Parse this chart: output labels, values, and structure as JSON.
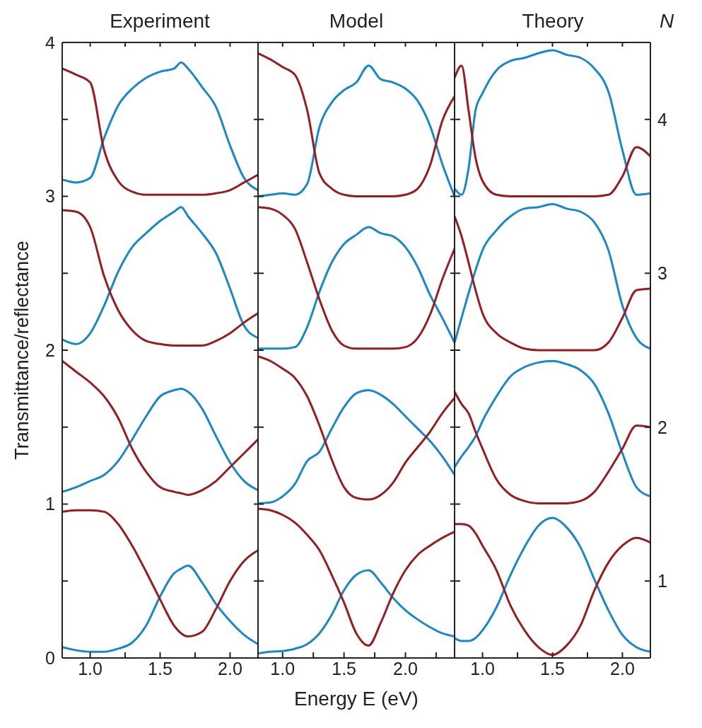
{
  "chart_data": [
    {
      "type": "line",
      "title": "Experiment",
      "ylabel": "Transmittance/reflectance",
      "xlim": [
        0.8,
        2.2
      ],
      "ylim": [
        0,
        4
      ],
      "xticks": [
        {
          "value": 1,
          "label": "1.0"
        },
        {
          "value": 1.25,
          "label": null
        },
        {
          "value": 1.5,
          "label": "1.5"
        },
        {
          "value": 1.75,
          "label": null
        },
        {
          "value": 2,
          "label": "2.0"
        }
      ],
      "yticks": [
        0,
        {
          "value": 0.5,
          "label": null
        },
        1,
        {
          "value": 1.5,
          "label": null
        },
        2,
        {
          "value": 2.5,
          "label": null
        },
        3,
        {
          "value": 3.5,
          "label": null
        },
        4
      ],
      "x": [
        0.8,
        0.9,
        1.0,
        1.1,
        1.2,
        1.3,
        1.4,
        1.5,
        1.6,
        1.65,
        1.7,
        1.8,
        1.9,
        2.0,
        2.1,
        2.2
      ],
      "series": [
        {
          "color": "#1888cc",
          "values": [
            0.07,
            0.05,
            0.04,
            0.04,
            0.06,
            0.1,
            0.21,
            0.4,
            0.55,
            0.58,
            0.6,
            0.49,
            0.35,
            0.24,
            0.15,
            0.09
          ]
        },
        {
          "color": "#9a1c20",
          "values": [
            0.95,
            0.96,
            0.96,
            0.95,
            0.87,
            0.73,
            0.56,
            0.38,
            0.21,
            0.16,
            0.14,
            0.17,
            0.32,
            0.5,
            0.63,
            0.7
          ]
        },
        {
          "color": "#1888cc",
          "values": [
            1.08,
            1.11,
            1.15,
            1.19,
            1.28,
            1.42,
            1.57,
            1.7,
            1.74,
            1.75,
            1.73,
            1.62,
            1.44,
            1.27,
            1.15,
            1.09
          ]
        },
        {
          "color": "#9a1c20",
          "values": [
            1.93,
            1.86,
            1.79,
            1.7,
            1.56,
            1.36,
            1.21,
            1.11,
            1.08,
            1.07,
            1.06,
            1.09,
            1.15,
            1.24,
            1.33,
            1.42
          ]
        },
        {
          "color": "#1888cc",
          "values": [
            2.07,
            2.04,
            2.11,
            2.29,
            2.51,
            2.67,
            2.76,
            2.84,
            2.9,
            2.93,
            2.87,
            2.76,
            2.63,
            2.4,
            2.16,
            2.08
          ]
        },
        {
          "color": "#9a1c20",
          "values": [
            2.91,
            2.9,
            2.8,
            2.48,
            2.26,
            2.13,
            2.06,
            2.04,
            2.03,
            2.03,
            2.03,
            2.03,
            2.06,
            2.11,
            2.18,
            2.24
          ]
        },
        {
          "color": "#1888cc",
          "values": [
            3.11,
            3.09,
            3.12,
            3.38,
            3.59,
            3.7,
            3.77,
            3.81,
            3.83,
            3.87,
            3.83,
            3.71,
            3.58,
            3.33,
            3.12,
            3.04
          ]
        },
        {
          "color": "#9a1c20",
          "values": [
            3.83,
            3.79,
            3.74,
            3.3,
            3.1,
            3.03,
            3.01,
            3.01,
            3.01,
            3.01,
            3.01,
            3.01,
            3.02,
            3.04,
            3.09,
            3.14
          ]
        }
      ]
    },
    {
      "type": "line",
      "title": "Model",
      "xlabel": "Energy E (eV)",
      "tick_labels": "x",
      "xlim": [
        0.8,
        2.4
      ],
      "ylim": [
        0,
        4
      ],
      "xticks": [
        {
          "value": 1,
          "label": "1.0"
        },
        {
          "value": 1.25,
          "label": null
        },
        {
          "value": 1.5,
          "label": "1.5"
        },
        {
          "value": 1.75,
          "label": null
        },
        {
          "value": 2,
          "label": "2.0"
        },
        {
          "value": 2.25,
          "label": null
        }
      ],
      "yticks": [
        0,
        {
          "value": 0.5,
          "label": null
        },
        1,
        {
          "value": 1.5,
          "label": null
        },
        2,
        {
          "value": 2.5,
          "label": null
        },
        3,
        {
          "value": 3.5,
          "label": null
        },
        4
      ],
      "x": [
        0.8,
        0.9,
        1.0,
        1.1,
        1.2,
        1.3,
        1.4,
        1.5,
        1.6,
        1.7,
        1.8,
        1.9,
        2.0,
        2.1,
        2.2,
        2.3,
        2.4
      ],
      "series": [
        {
          "color": "#1888cc",
          "values": [
            0.03,
            0.04,
            0.045,
            0.06,
            0.09,
            0.16,
            0.28,
            0.44,
            0.54,
            0.57,
            0.49,
            0.39,
            0.31,
            0.25,
            0.2,
            0.16,
            0.14
          ]
        },
        {
          "color": "#9a1c20",
          "values": [
            0.97,
            0.96,
            0.93,
            0.88,
            0.8,
            0.7,
            0.54,
            0.36,
            0.16,
            0.08,
            0.23,
            0.42,
            0.57,
            0.67,
            0.73,
            0.78,
            0.82
          ]
        },
        {
          "color": "#1888cc",
          "values": [
            1.005,
            1.01,
            1.05,
            1.13,
            1.28,
            1.34,
            1.49,
            1.63,
            1.72,
            1.74,
            1.71,
            1.65,
            1.57,
            1.49,
            1.41,
            1.31,
            1.19
          ]
        },
        {
          "color": "#9a1c20",
          "values": [
            1.96,
            1.93,
            1.88,
            1.82,
            1.7,
            1.51,
            1.29,
            1.11,
            1.04,
            1.03,
            1.06,
            1.14,
            1.27,
            1.37,
            1.47,
            1.59,
            1.69
          ]
        },
        {
          "color": "#1888cc",
          "values": [
            2.01,
            2.01,
            2.01,
            2.02,
            2.15,
            2.38,
            2.57,
            2.69,
            2.75,
            2.8,
            2.76,
            2.74,
            2.67,
            2.54,
            2.36,
            2.21,
            2.05
          ]
        },
        {
          "color": "#9a1c20",
          "values": [
            2.93,
            2.92,
            2.88,
            2.79,
            2.57,
            2.33,
            2.13,
            2.03,
            2.01,
            2.01,
            2.01,
            2.01,
            2.02,
            2.08,
            2.23,
            2.46,
            2.66
          ]
        },
        {
          "color": "#1888cc",
          "values": [
            3.0,
            3.01,
            3.02,
            3.01,
            3.08,
            3.45,
            3.61,
            3.69,
            3.74,
            3.85,
            3.76,
            3.74,
            3.7,
            3.62,
            3.46,
            3.21,
            3.0
          ]
        },
        {
          "color": "#9a1c20",
          "values": [
            3.93,
            3.89,
            3.84,
            3.79,
            3.56,
            3.15,
            3.05,
            3.01,
            3.0,
            3.0,
            3.0,
            3.0,
            3.01,
            3.05,
            3.2,
            3.49,
            3.65
          ]
        }
      ]
    },
    {
      "type": "line",
      "title": "Theory",
      "y2label": "N",
      "tick_labels": "x",
      "xlim": [
        0.8,
        2.2
      ],
      "ylim": [
        0,
        4
      ],
      "y2lim": [
        0,
        4
      ],
      "xticks": [
        {
          "value": 1,
          "label": "1.0"
        },
        {
          "value": 1.25,
          "label": null
        },
        {
          "value": 1.5,
          "label": "1.5"
        },
        {
          "value": 1.75,
          "label": null
        },
        {
          "value": 2,
          "label": "2.0"
        }
      ],
      "yticks": [
        0,
        {
          "value": 0.5,
          "label": null
        },
        1,
        {
          "value": 1.5,
          "label": null
        },
        2,
        {
          "value": 2.5,
          "label": null
        },
        3,
        {
          "value": 3.5,
          "label": null
        },
        4
      ],
      "y2ticks": [
        {
          "value": 0.5,
          "label": "1"
        },
        {
          "value": 1.5,
          "label": "2"
        },
        {
          "value": 2.5,
          "label": "3"
        },
        {
          "value": 3.5,
          "label": "4"
        }
      ],
      "x": [
        0.8,
        0.85,
        0.9,
        0.95,
        1.0,
        1.1,
        1.2,
        1.3,
        1.4,
        1.5,
        1.6,
        1.7,
        1.8,
        1.9,
        2.0,
        2.1,
        2.2
      ],
      "series": [
        {
          "color": "#1888cc",
          "values": [
            0.13,
            0.11,
            0.11,
            0.13,
            0.18,
            0.33,
            0.54,
            0.72,
            0.86,
            0.91,
            0.85,
            0.72,
            0.51,
            0.31,
            0.15,
            0.07,
            0.04
          ]
        },
        {
          "color": "#9a1c20",
          "values": [
            0.87,
            0.87,
            0.86,
            0.81,
            0.73,
            0.57,
            0.34,
            0.18,
            0.07,
            0.02,
            0.08,
            0.21,
            0.44,
            0.62,
            0.73,
            0.78,
            0.75
          ]
        },
        {
          "color": "#1888cc",
          "values": [
            1.24,
            1.31,
            1.37,
            1.44,
            1.54,
            1.7,
            1.83,
            1.89,
            1.92,
            1.93,
            1.91,
            1.87,
            1.78,
            1.59,
            1.33,
            1.11,
            1.05
          ]
        },
        {
          "color": "#9a1c20",
          "values": [
            1.73,
            1.65,
            1.59,
            1.47,
            1.36,
            1.16,
            1.06,
            1.02,
            1.005,
            1.005,
            1.005,
            1.02,
            1.08,
            1.21,
            1.36,
            1.51,
            1.5
          ]
        },
        {
          "color": "#1888cc",
          "values": [
            2.05,
            2.21,
            2.37,
            2.52,
            2.65,
            2.78,
            2.87,
            2.92,
            2.93,
            2.95,
            2.92,
            2.9,
            2.83,
            2.65,
            2.29,
            2.08,
            2.01
          ]
        },
        {
          "color": "#9a1c20",
          "values": [
            2.87,
            2.74,
            2.57,
            2.39,
            2.24,
            2.11,
            2.05,
            2.01,
            2.0,
            2.0,
            2.0,
            2.0,
            2.0,
            2.05,
            2.21,
            2.39,
            2.4
          ]
        },
        {
          "color": "#1888cc",
          "values": [
            3.05,
            3.01,
            3.18,
            3.56,
            3.67,
            3.82,
            3.88,
            3.9,
            3.93,
            3.95,
            3.92,
            3.9,
            3.83,
            3.68,
            3.3,
            3.01,
            3.02
          ]
        },
        {
          "color": "#9a1c20",
          "values": [
            3.77,
            3.85,
            3.56,
            3.25,
            3.1,
            3.01,
            3.0,
            3.0,
            3.0,
            3.0,
            3.0,
            3.0,
            3.0,
            3.01,
            3.13,
            3.32,
            3.26
          ]
        }
      ]
    }
  ]
}
